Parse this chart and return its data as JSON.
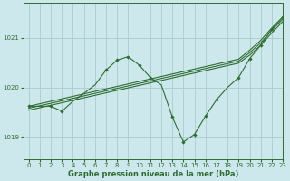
{
  "title": "Graphe pression niveau de la mer (hPa)",
  "background_color": "#cce8ec",
  "line_color": "#2d6e2d",
  "grid_color": "#aacccc",
  "xlim": [
    -0.5,
    23
  ],
  "ylim": [
    1018.55,
    1021.7
  ],
  "xticks": [
    0,
    1,
    2,
    3,
    4,
    5,
    6,
    7,
    8,
    9,
    10,
    11,
    12,
    13,
    14,
    15,
    16,
    17,
    18,
    19,
    20,
    21,
    22,
    23
  ],
  "yticks": [
    1019,
    1020,
    1021
  ],
  "series_straight1": {
    "x": [
      0,
      1,
      2,
      3,
      4,
      5,
      6,
      7,
      8,
      9,
      10,
      11,
      12,
      13,
      14,
      15,
      16,
      17,
      18,
      19,
      20,
      21,
      22,
      23
    ],
    "y": [
      1019.62,
      1019.67,
      1019.72,
      1019.77,
      1019.82,
      1019.87,
      1019.92,
      1019.97,
      1020.02,
      1020.07,
      1020.12,
      1020.17,
      1020.22,
      1020.27,
      1020.32,
      1020.37,
      1020.42,
      1020.47,
      1020.52,
      1020.57,
      1020.75,
      1020.95,
      1021.2,
      1021.42
    ]
  },
  "series_straight2": {
    "x": [
      0,
      1,
      2,
      3,
      4,
      5,
      6,
      7,
      8,
      9,
      10,
      11,
      12,
      13,
      14,
      15,
      16,
      17,
      18,
      19,
      20,
      21,
      22,
      23
    ],
    "y": [
      1019.58,
      1019.63,
      1019.68,
      1019.73,
      1019.78,
      1019.83,
      1019.88,
      1019.93,
      1019.98,
      1020.03,
      1020.08,
      1020.13,
      1020.18,
      1020.23,
      1020.28,
      1020.33,
      1020.38,
      1020.43,
      1020.48,
      1020.53,
      1020.7,
      1020.9,
      1021.15,
      1021.38
    ]
  },
  "series_straight3": {
    "x": [
      0,
      1,
      2,
      3,
      4,
      5,
      6,
      7,
      8,
      9,
      10,
      11,
      12,
      13,
      14,
      15,
      16,
      17,
      18,
      19,
      20,
      21,
      22,
      23
    ],
    "y": [
      1019.54,
      1019.59,
      1019.64,
      1019.69,
      1019.74,
      1019.79,
      1019.84,
      1019.89,
      1019.94,
      1019.99,
      1020.04,
      1020.09,
      1020.14,
      1020.19,
      1020.24,
      1020.29,
      1020.34,
      1020.39,
      1020.44,
      1020.49,
      1020.65,
      1020.85,
      1021.1,
      1021.33
    ]
  },
  "series_dip": {
    "x": [
      0,
      1,
      2,
      3,
      4,
      5,
      6,
      7,
      8,
      9,
      10,
      11,
      12,
      13,
      14,
      15,
      16,
      17,
      18,
      19,
      20,
      21,
      22,
      23
    ],
    "y": [
      1019.62,
      1019.62,
      1019.62,
      1019.52,
      1019.72,
      1019.88,
      1020.05,
      1020.35,
      1020.55,
      1020.62,
      1020.45,
      1020.2,
      1020.05,
      1019.4,
      1018.9,
      1019.05,
      1019.42,
      1019.75,
      1020.0,
      1020.2,
      1020.58,
      1020.85,
      1021.18,
      1021.42
    ]
  },
  "markers_dip": {
    "x": [
      0,
      2,
      3,
      7,
      8,
      9,
      10,
      11,
      13,
      14,
      15,
      16,
      17,
      19,
      20,
      21,
      22,
      23
    ],
    "y": [
      1019.62,
      1019.62,
      1019.52,
      1020.35,
      1020.55,
      1020.62,
      1020.45,
      1020.2,
      1019.4,
      1018.9,
      1019.05,
      1019.42,
      1019.75,
      1020.2,
      1020.58,
      1020.85,
      1021.18,
      1021.42
    ]
  }
}
